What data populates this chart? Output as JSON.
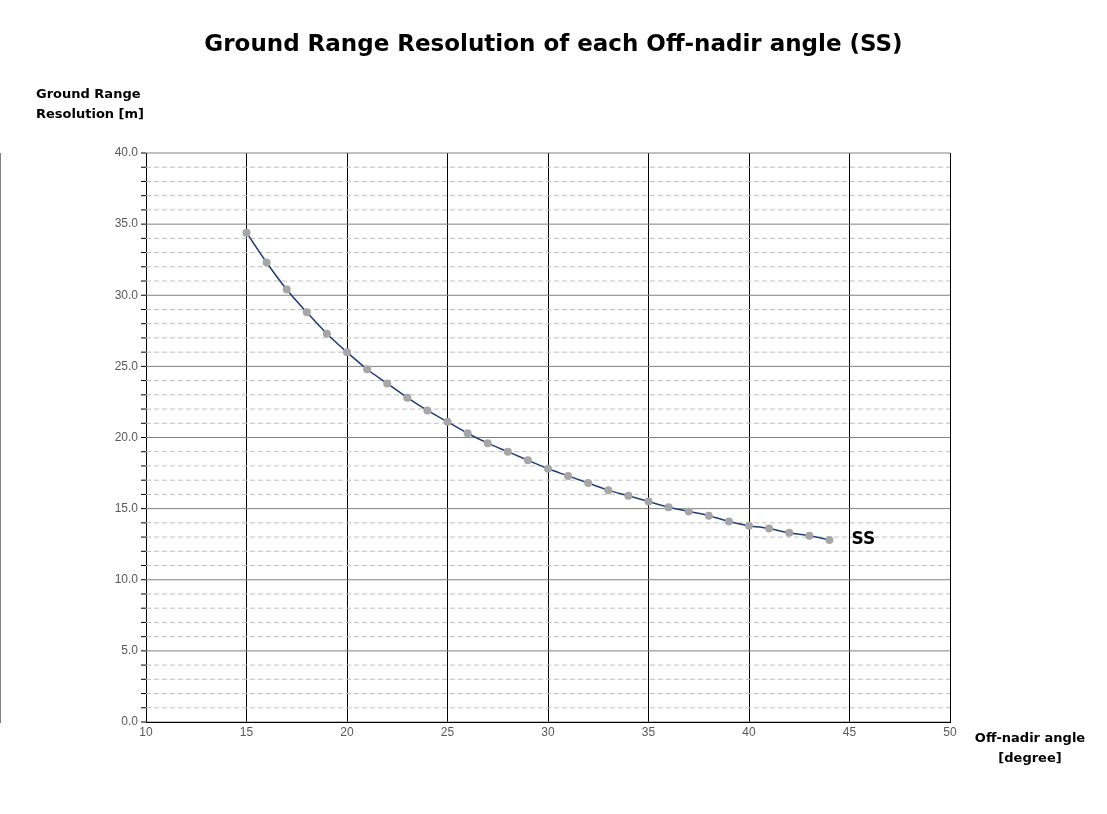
{
  "chart_data": {
    "type": "line",
    "title": "Ground Range Resolution of each Off-nadir angle (SS)",
    "xlabel": "Off-nadir angle [degree]",
    "ylabel": "Ground Range Resolution [m]",
    "x": [
      15,
      16,
      17,
      18,
      19,
      20,
      21,
      22,
      23,
      24,
      25,
      26,
      27,
      28,
      29,
      30,
      31,
      32,
      33,
      34,
      35,
      36,
      37,
      38,
      39,
      40,
      41,
      42,
      43,
      44
    ],
    "series": [
      {
        "name": "SS",
        "color": "#1f3d7a",
        "values": [
          34.4,
          32.3,
          30.4,
          28.8,
          27.3,
          26.0,
          24.8,
          23.8,
          22.8,
          21.9,
          21.1,
          20.3,
          19.6,
          19.0,
          18.4,
          17.8,
          17.3,
          16.8,
          16.3,
          15.9,
          15.5,
          15.1,
          14.8,
          14.5,
          14.1,
          13.8,
          13.6,
          13.3,
          13.1,
          12.8
        ]
      }
    ],
    "xlim": [
      10,
      50
    ],
    "xticks": [
      10,
      15,
      20,
      25,
      30,
      35,
      40,
      45,
      50
    ],
    "ylim": [
      0,
      40
    ],
    "yticks": [
      {
        "value": 0,
        "label": "0.0"
      },
      {
        "value": 1,
        "label": null
      },
      {
        "value": 2,
        "label": null
      },
      {
        "value": 3,
        "label": null
      },
      {
        "value": 4,
        "label": null
      },
      {
        "value": 5,
        "label": "5.0"
      },
      {
        "value": 6,
        "label": null
      },
      {
        "value": 7,
        "label": null
      },
      {
        "value": 8,
        "label": null
      },
      {
        "value": 9,
        "label": null
      },
      {
        "value": 10,
        "label": "10.0"
      },
      {
        "value": 11,
        "label": null
      },
      {
        "value": 12,
        "label": null
      },
      {
        "value": 13,
        "label": null
      },
      {
        "value": 14,
        "label": null
      },
      {
        "value": 15,
        "label": "15.0"
      },
      {
        "value": 16,
        "label": null
      },
      {
        "value": 17,
        "label": null
      },
      {
        "value": 18,
        "label": null
      },
      {
        "value": 19,
        "label": null
      },
      {
        "value": 20,
        "label": "20.0"
      },
      {
        "value": 21,
        "label": null
      },
      {
        "value": 22,
        "label": null
      },
      {
        "value": 23,
        "label": null
      },
      {
        "value": 24,
        "label": null
      },
      {
        "value": 25,
        "label": "25.0"
      },
      {
        "value": 26,
        "label": null
      },
      {
        "value": 27,
        "label": null
      },
      {
        "value": 28,
        "label": null
      },
      {
        "value": 29,
        "label": null
      },
      {
        "value": 30,
        "label": "30.0"
      },
      {
        "value": 31,
        "label": null
      },
      {
        "value": 32,
        "label": null
      },
      {
        "value": 33,
        "label": null
      },
      {
        "value": 34,
        "label": null
      },
      {
        "value": 35,
        "label": "35.0"
      },
      {
        "value": 36,
        "label": null
      },
      {
        "value": 37,
        "label": null
      },
      {
        "value": 38,
        "label": null
      },
      {
        "value": 39,
        "label": null
      },
      {
        "value": 40,
        "label": "40.0"
      }
    ],
    "grid": true,
    "marker": "circle",
    "line_style": "solid",
    "legend": false
  }
}
